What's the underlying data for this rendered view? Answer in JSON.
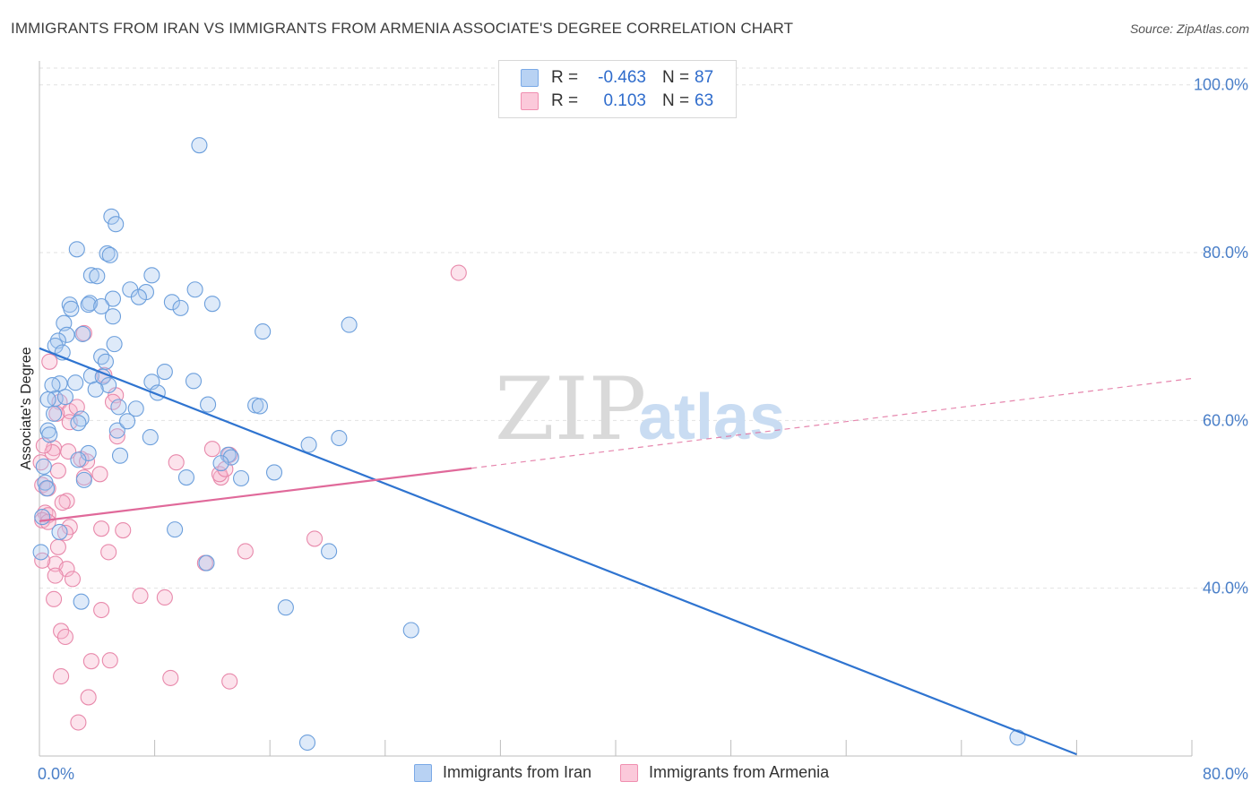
{
  "title": "IMMIGRANTS FROM IRAN VS IMMIGRANTS FROM ARMENIA ASSOCIATE'S DEGREE CORRELATION CHART",
  "source": "Source: ZipAtlas.com",
  "watermark": {
    "zip": "ZIP",
    "atlas": "atlas"
  },
  "colors": {
    "iran": "#7aa9e6",
    "iran_line": "#2f74d0",
    "armenia": "#f08fb0",
    "armenia_line": "#e0699a",
    "tick": "#4a7fc8"
  },
  "legend": {
    "iran": {
      "r_label": "R =",
      "r_value": "-0.463",
      "n_label": "N =",
      "n_value": "87"
    },
    "armenia": {
      "r_label": "R =",
      "r_value": "0.103",
      "n_label": "N =",
      "n_value": "63"
    }
  },
  "bottom_legend": {
    "iran": "Immigrants from Iran",
    "armenia": "Immigrants from Armenia"
  },
  "chart_data": {
    "type": "scatter",
    "title": "IMMIGRANTS FROM IRAN VS IMMIGRANTS FROM ARMENIA ASSOCIATE'S DEGREE CORRELATION CHART",
    "xlabel": "",
    "ylabel": "Associate's Degree",
    "xlim": [
      0,
      80
    ],
    "ylim": [
      20,
      102
    ],
    "x_tick_labels": [
      "0.0%",
      "80.0%"
    ],
    "y_ticks": [
      40,
      60,
      80,
      100
    ],
    "y_tick_labels": [
      "40.0%",
      "60.0%",
      "80.0%",
      "100.0%"
    ],
    "grid": true,
    "series": [
      {
        "name": "Immigrants from Iran",
        "r": -0.463,
        "n": 87,
        "trend": {
          "x0": 0,
          "y0": 68.6,
          "x1": 72,
          "y1": 20.2
        },
        "points": [
          [
            11.1,
            92.8
          ],
          [
            5.0,
            84.3
          ],
          [
            5.3,
            83.4
          ],
          [
            2.6,
            80.4
          ],
          [
            4.7,
            79.9
          ],
          [
            4.9,
            79.7
          ],
          [
            3.6,
            77.3
          ],
          [
            4.0,
            77.2
          ],
          [
            7.8,
            77.3
          ],
          [
            6.3,
            75.6
          ],
          [
            10.8,
            75.6
          ],
          [
            7.4,
            75.3
          ],
          [
            6.9,
            74.7
          ],
          [
            5.1,
            74.5
          ],
          [
            3.5,
            74.0
          ],
          [
            9.2,
            74.1
          ],
          [
            12.0,
            73.9
          ],
          [
            2.1,
            73.8
          ],
          [
            3.4,
            73.8
          ],
          [
            4.3,
            73.6
          ],
          [
            2.2,
            73.3
          ],
          [
            9.8,
            73.4
          ],
          [
            5.1,
            72.4
          ],
          [
            21.5,
            71.4
          ],
          [
            1.7,
            71.6
          ],
          [
            15.5,
            70.6
          ],
          [
            1.9,
            70.2
          ],
          [
            3.0,
            70.3
          ],
          [
            1.3,
            69.5
          ],
          [
            5.2,
            69.1
          ],
          [
            1.1,
            68.9
          ],
          [
            1.6,
            68.1
          ],
          [
            4.3,
            67.6
          ],
          [
            4.6,
            67.0
          ],
          [
            8.7,
            65.8
          ],
          [
            3.6,
            65.3
          ],
          [
            4.4,
            65.2
          ],
          [
            7.8,
            64.6
          ],
          [
            10.7,
            64.7
          ],
          [
            1.4,
            64.4
          ],
          [
            2.5,
            64.5
          ],
          [
            0.9,
            64.2
          ],
          [
            4.8,
            64.2
          ],
          [
            3.9,
            63.7
          ],
          [
            8.2,
            63.3
          ],
          [
            1.1,
            62.6
          ],
          [
            0.6,
            62.5
          ],
          [
            11.7,
            61.9
          ],
          [
            5.5,
            61.6
          ],
          [
            15.0,
            61.8
          ],
          [
            15.3,
            61.7
          ],
          [
            6.7,
            61.4
          ],
          [
            1.0,
            60.8
          ],
          [
            2.9,
            60.2
          ],
          [
            2.7,
            59.7
          ],
          [
            0.6,
            58.8
          ],
          [
            5.4,
            58.8
          ],
          [
            0.7,
            58.3
          ],
          [
            7.7,
            58.0
          ],
          [
            20.8,
            57.9
          ],
          [
            18.7,
            57.1
          ],
          [
            3.4,
            56.1
          ],
          [
            5.6,
            55.8
          ],
          [
            13.1,
            55.9
          ],
          [
            13.3,
            55.6
          ],
          [
            2.7,
            55.3
          ],
          [
            12.6,
            54.9
          ],
          [
            16.3,
            53.8
          ],
          [
            10.2,
            53.2
          ],
          [
            14.0,
            53.1
          ],
          [
            3.1,
            52.9
          ],
          [
            0.4,
            52.6
          ],
          [
            0.5,
            51.9
          ],
          [
            0.1,
            44.3
          ],
          [
            1.4,
            46.7
          ],
          [
            9.4,
            47.0
          ],
          [
            11.6,
            43.0
          ],
          [
            20.1,
            44.4
          ],
          [
            2.9,
            38.4
          ],
          [
            17.1,
            37.7
          ],
          [
            25.8,
            35.0
          ],
          [
            18.6,
            21.6
          ],
          [
            67.9,
            22.2
          ],
          [
            0.3,
            54.5
          ],
          [
            0.2,
            48.5
          ],
          [
            1.8,
            62.8
          ],
          [
            6.1,
            59.9
          ]
        ]
      },
      {
        "name": "Immigrants from Armenia",
        "r": 0.103,
        "n": 63,
        "trend": {
          "x0": 0,
          "y0": 48.0,
          "x1": 30,
          "y1": 54.3
        },
        "trend_dashed": {
          "x0": 30,
          "y0": 54.3,
          "x1": 80,
          "y1": 65.0
        },
        "points": [
          [
            29.1,
            77.6
          ],
          [
            3.1,
            70.4
          ],
          [
            0.7,
            67.0
          ],
          [
            4.5,
            65.4
          ],
          [
            5.3,
            63.0
          ],
          [
            1.4,
            62.2
          ],
          [
            2.1,
            61.1
          ],
          [
            1.2,
            60.8
          ],
          [
            2.1,
            59.8
          ],
          [
            5.4,
            58.1
          ],
          [
            1.0,
            56.7
          ],
          [
            0.9,
            56.2
          ],
          [
            2.0,
            56.3
          ],
          [
            12.0,
            56.6
          ],
          [
            13.2,
            55.9
          ],
          [
            2.9,
            55.4
          ],
          [
            3.3,
            55.1
          ],
          [
            9.5,
            55.0
          ],
          [
            1.3,
            54.0
          ],
          [
            4.2,
            53.6
          ],
          [
            12.6,
            53.2
          ],
          [
            12.5,
            53.6
          ],
          [
            12.9,
            54.2
          ],
          [
            3.1,
            53.2
          ],
          [
            0.2,
            52.3
          ],
          [
            0.6,
            51.9
          ],
          [
            1.9,
            50.4
          ],
          [
            1.6,
            50.2
          ],
          [
            0.4,
            49.0
          ],
          [
            0.6,
            48.7
          ],
          [
            0.2,
            48.1
          ],
          [
            0.6,
            47.9
          ],
          [
            2.1,
            47.3
          ],
          [
            4.3,
            47.1
          ],
          [
            5.8,
            46.9
          ],
          [
            1.8,
            46.6
          ],
          [
            19.1,
            45.9
          ],
          [
            1.3,
            44.9
          ],
          [
            4.8,
            44.3
          ],
          [
            14.3,
            44.4
          ],
          [
            1.1,
            42.9
          ],
          [
            11.5,
            43.0
          ],
          [
            0.2,
            43.3
          ],
          [
            1.9,
            42.3
          ],
          [
            1.1,
            41.5
          ],
          [
            2.3,
            41.1
          ],
          [
            1.0,
            38.7
          ],
          [
            7.0,
            39.1
          ],
          [
            8.7,
            38.9
          ],
          [
            4.3,
            37.4
          ],
          [
            1.5,
            34.9
          ],
          [
            1.8,
            34.2
          ],
          [
            3.6,
            31.3
          ],
          [
            4.9,
            31.4
          ],
          [
            1.5,
            29.5
          ],
          [
            9.1,
            29.3
          ],
          [
            13.2,
            28.9
          ],
          [
            3.4,
            27.0
          ],
          [
            2.7,
            24.0
          ],
          [
            0.1,
            55.0
          ],
          [
            0.3,
            57.0
          ],
          [
            2.6,
            61.6
          ],
          [
            5.1,
            62.2
          ]
        ]
      }
    ]
  }
}
